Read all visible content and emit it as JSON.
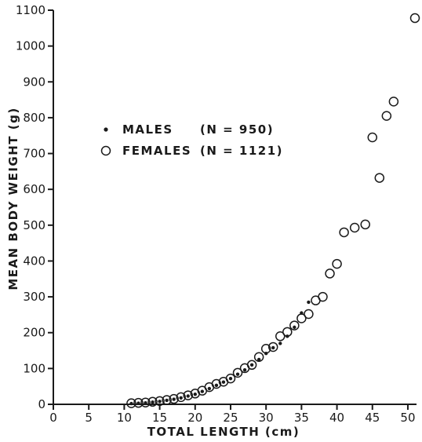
{
  "chart_data": {
    "type": "scatter",
    "title": "",
    "xlabel": "TOTAL LENGTH (cm)",
    "ylabel": "MEAN BODY WEIGHT (g)",
    "xlim": [
      0,
      51
    ],
    "ylim": [
      0,
      1100
    ],
    "x_ticks": [
      "0",
      "5",
      "10",
      "15",
      "20",
      "25",
      "30",
      "35",
      "40",
      "45",
      "50"
    ],
    "y_ticks": [
      "0",
      "100",
      "200",
      "300",
      "400",
      "500",
      "600",
      "700",
      "800",
      "900",
      "1000",
      "1100"
    ],
    "legend": {
      "placement": "upper-left",
      "entries": [
        {
          "marker": "dot",
          "label": "MALES",
          "count_label": "(N = 950)"
        },
        {
          "marker": "open-circle",
          "label": "FEMALES",
          "count_label": "(N = 1121)"
        }
      ]
    },
    "series": [
      {
        "name": "MALES",
        "marker": "dot",
        "points": [
          [
            11,
            2
          ],
          [
            12,
            3
          ],
          [
            13,
            4
          ],
          [
            14,
            6
          ],
          [
            15,
            8
          ],
          [
            16,
            11
          ],
          [
            17,
            14
          ],
          [
            18,
            18
          ],
          [
            19,
            23
          ],
          [
            20,
            28
          ],
          [
            21,
            36
          ],
          [
            22,
            44
          ],
          [
            23,
            53
          ],
          [
            24,
            62
          ],
          [
            25,
            72
          ],
          [
            26,
            84
          ],
          [
            27,
            96
          ],
          [
            28,
            110
          ],
          [
            29,
            125
          ],
          [
            30,
            142
          ],
          [
            31,
            158
          ],
          [
            32,
            170
          ],
          [
            33,
            190
          ],
          [
            34,
            215
          ],
          [
            35,
            255
          ],
          [
            36,
            285
          ]
        ]
      },
      {
        "name": "FEMALES",
        "marker": "open-circle",
        "points": [
          [
            11,
            3
          ],
          [
            12,
            4
          ],
          [
            13,
            5
          ],
          [
            14,
            7
          ],
          [
            15,
            9
          ],
          [
            16,
            12
          ],
          [
            17,
            15
          ],
          [
            18,
            20
          ],
          [
            19,
            25
          ],
          [
            20,
            30
          ],
          [
            21,
            38
          ],
          [
            22,
            48
          ],
          [
            23,
            57
          ],
          [
            24,
            63
          ],
          [
            25,
            72
          ],
          [
            26,
            88
          ],
          [
            27,
            101
          ],
          [
            28,
            110
          ],
          [
            29,
            132
          ],
          [
            30,
            155
          ],
          [
            31,
            160
          ],
          [
            32,
            190
          ],
          [
            33,
            202
          ],
          [
            34,
            220
          ],
          [
            35,
            240
          ],
          [
            36,
            252
          ],
          [
            37,
            290
          ],
          [
            38,
            300
          ],
          [
            39,
            365
          ],
          [
            40,
            392
          ],
          [
            41,
            480
          ],
          [
            42.5,
            493
          ],
          [
            44,
            502
          ],
          [
            45,
            745
          ],
          [
            46,
            632
          ],
          [
            47,
            805
          ],
          [
            48,
            845
          ],
          [
            51,
            1078
          ]
        ]
      }
    ]
  }
}
